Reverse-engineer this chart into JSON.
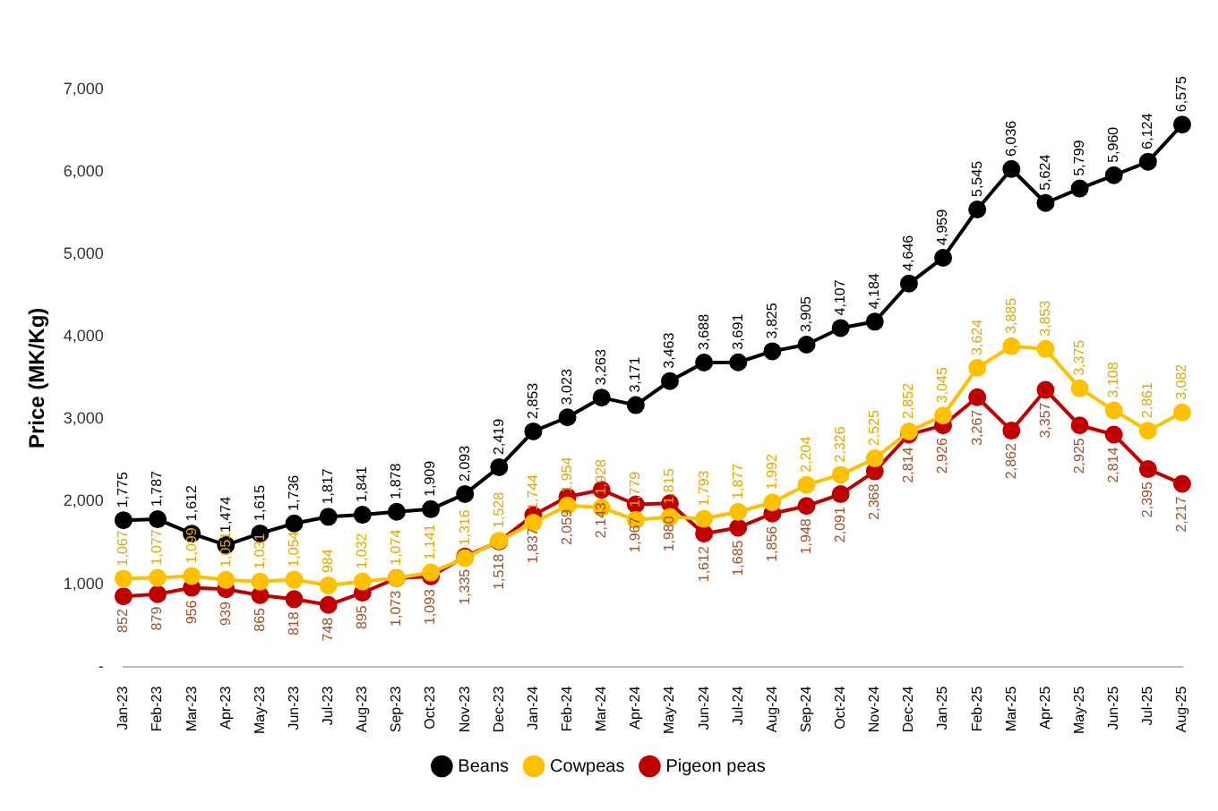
{
  "chart_data": {
    "type": "line",
    "ylabel": "Price (MK/Kg)",
    "categories": [
      "Jan-23",
      "Feb-23",
      "Mar-23",
      "Apr-23",
      "May-23",
      "Jun-23",
      "Jul-23",
      "Aug-23",
      "Sep-23",
      "Oct-23",
      "Nov-23",
      "Dec-23",
      "Jan-24",
      "Feb-24",
      "Mar-24",
      "Apr-24",
      "May-24",
      "Jun-24",
      "Jul-24",
      "Aug-24",
      "Sep-24",
      "Oct-24",
      "Nov-24",
      "Dec-24",
      "Jan-25",
      "Feb-25",
      "Mar-25",
      "Apr-25",
      "May-25",
      "Jun-25",
      "Jul-25",
      "Aug-25"
    ],
    "series": [
      {
        "name": "Beans",
        "color": "#000000",
        "values": [
          1775,
          1787,
          1612,
          1474,
          1615,
          1736,
          1817,
          1841,
          1878,
          1909,
          2093,
          2419,
          2853,
          3023,
          3263,
          3171,
          3463,
          3688,
          3691,
          3825,
          3905,
          4107,
          4184,
          4646,
          4959,
          5545,
          6036,
          5624,
          5799,
          5960,
          6124,
          6575
        ],
        "value_labels": [
          "1,775",
          "1,787",
          "1,612",
          "1,474",
          "1,615",
          "1,736",
          "1,817",
          "1,841",
          "1,878",
          "1,909",
          "2,093",
          "2,419",
          "2,853",
          "3,023",
          "3,263",
          "3,171",
          "3,463",
          "3,688",
          "3,691",
          "3,825",
          "3,905",
          "4,107",
          "4,184",
          "4,646",
          "4,959",
          "5,545",
          "6,036",
          "5,624",
          "5,799",
          "5,960",
          "6,124",
          "6,575"
        ]
      },
      {
        "name": "Cowpeas",
        "color": "#ffc000",
        "values": [
          1067,
          1077,
          1099,
          1051,
          1031,
          1054,
          984,
          1032,
          1074,
          1141,
          1316,
          1528,
          1744,
          1954,
          1928,
          1779,
          1815,
          1793,
          1877,
          1992,
          2204,
          2326,
          2525,
          2852,
          3045,
          3624,
          3885,
          3853,
          3375,
          3108,
          2861,
          3082
        ],
        "value_labels": [
          "1,067",
          "1,077",
          "1,099",
          "1,051",
          "1,031",
          "1,054",
          "984",
          "1,032",
          "1,074",
          "1,141",
          "1,316",
          "1,528",
          "1,744",
          "1,954",
          "1,928",
          "1,779",
          "1,815",
          "1,793",
          "1,877",
          "1,992",
          "2,204",
          "2,326",
          "2,525",
          "2,852",
          "3,045",
          "3,624",
          "3,885",
          "3,853",
          "3,375",
          "3,108",
          "2,861",
          "3,082"
        ]
      },
      {
        "name": "Pigeon peas",
        "color": "#c00000",
        "values": [
          852,
          879,
          956,
          939,
          865,
          818,
          748,
          895,
          1073,
          1093,
          1335,
          1518,
          1837,
          2059,
          2143,
          1967,
          1980,
          1612,
          1685,
          1856,
          1948,
          2091,
          2368,
          2814,
          2926,
          3267,
          2862,
          3357,
          2925,
          2814,
          2395,
          2217
        ],
        "value_labels": [
          "852",
          "879",
          "956",
          "939",
          "865",
          "818",
          "748",
          "895",
          "1,073",
          "1,093",
          "1,335",
          "1,518",
          "1,837",
          "2,059",
          "2,143",
          "1,967",
          "1,980",
          "1,612",
          "1,685",
          "1,856",
          "1,948",
          "2,091",
          "2,368",
          "2,814",
          "2,926",
          "3,267",
          "2,862",
          "3,357",
          "2,925",
          "2,814",
          "2,395",
          "2,217"
        ]
      }
    ],
    "ylim": [
      0,
      7000
    ],
    "yticks": [
      {
        "value": 0,
        "label": "-"
      },
      {
        "value": 1000,
        "label": "1,000"
      },
      {
        "value": 2000,
        "label": "2,000"
      },
      {
        "value": 3000,
        "label": "3,000"
      },
      {
        "value": 4000,
        "label": "4,000"
      },
      {
        "value": 5000,
        "label": "5,000"
      },
      {
        "value": 6000,
        "label": "6,000"
      },
      {
        "value": 7000,
        "label": "7,000"
      }
    ],
    "grid": false,
    "legend": "bottom",
    "marker": "circle",
    "line_style": "solid"
  }
}
